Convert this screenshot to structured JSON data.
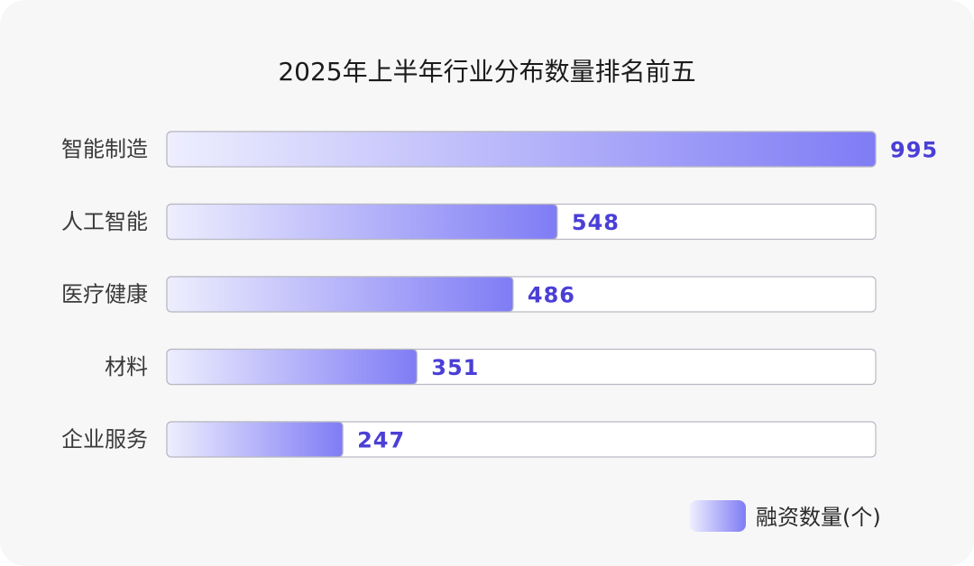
{
  "chart_data": {
    "type": "bar",
    "orientation": "horizontal",
    "title": "2025年上半年行业分布数量排名前五",
    "categories": [
      "智能制造",
      "人工智能",
      "医疗健康",
      "材料",
      "企业服务"
    ],
    "series": [
      {
        "name": "融资数量(个)",
        "values": [
          995,
          548,
          486,
          351,
          247
        ]
      }
    ],
    "xlim": [
      0,
      995
    ],
    "grid": false,
    "legend_position": "bottom-right",
    "xlabel": "",
    "ylabel": ""
  },
  "colors": {
    "bar_gradient_start": "#eeeefe",
    "bar_gradient_end": "#7f7cf5",
    "value_text": "#4a3fd6",
    "track_fill": "#ffffff",
    "track_stroke": "#b9b9c3",
    "background": "#f7f7f8"
  }
}
